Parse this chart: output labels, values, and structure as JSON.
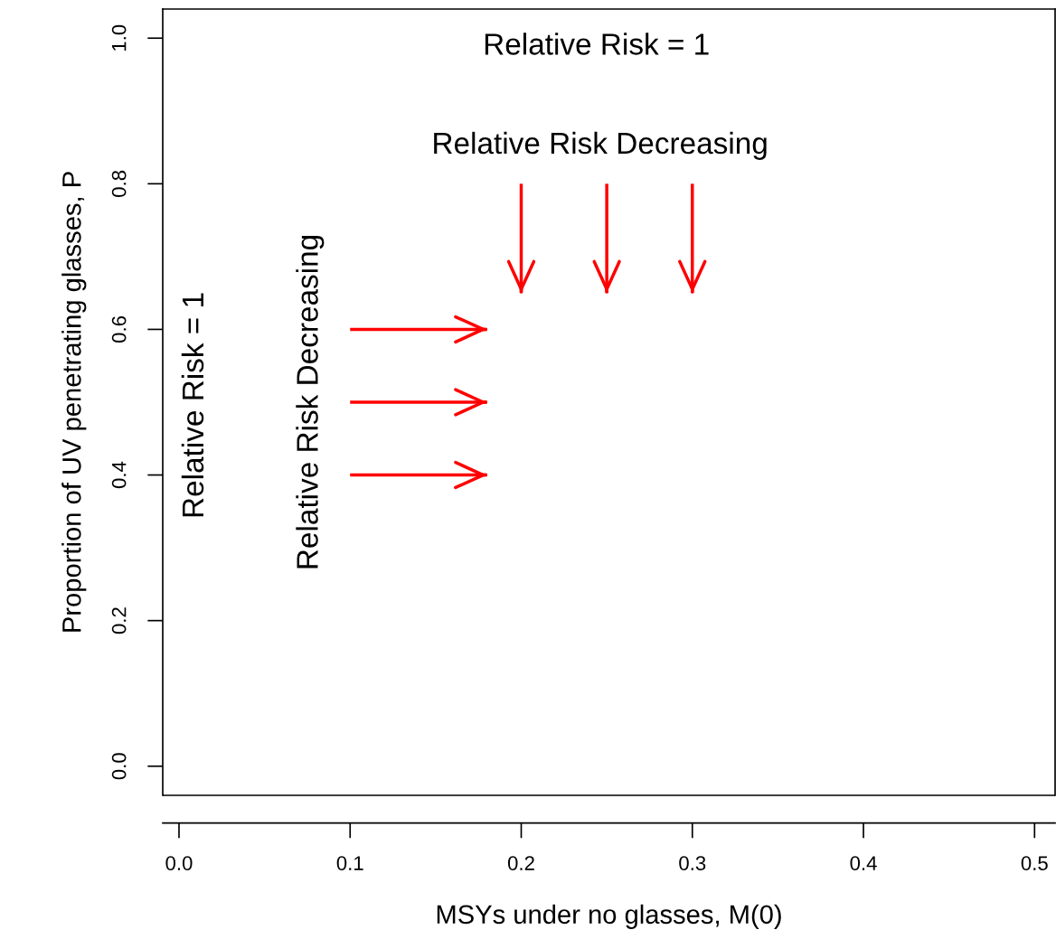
{
  "chart_data": {
    "type": "line",
    "xlabel": "MSYs under no glasses, M(0)",
    "ylabel": "Proportion of UV penetrating glasses, P",
    "xlim": [
      -0.0095,
      0.512
    ],
    "ylim": [
      -0.04,
      1.04
    ],
    "xticks": [
      {
        "value": 0,
        "label": "0.0"
      },
      0.1,
      0.2,
      0.3,
      0.4,
      0.5
    ],
    "yticks": [
      {
        "value": 0,
        "label": "0.0"
      },
      0.2,
      0.4,
      0.6,
      0.8,
      {
        "value": 1,
        "label": "1.0"
      }
    ],
    "annotations": [
      "Relative Risk = 1",
      "Relative Risk Decreasing",
      "Relative Risk = 1",
      "Relative Risk Decreasing"
    ],
    "series": [
      {
        "color": "#ff0000",
        "x": [
          0.1,
          0.18
        ],
        "values": [
          0.6,
          0.6
        ]
      },
      {
        "color": "#ff0000",
        "x": [
          0.1,
          0.18
        ],
        "values": [
          0.5,
          0.5
        ]
      },
      {
        "color": "#ff0000",
        "x": [
          0.1,
          0.18
        ],
        "values": [
          0.4,
          0.4
        ]
      },
      {
        "color": "#ff0000",
        "x": [
          0.2,
          0.2
        ],
        "values": [
          0.8,
          0.65
        ]
      },
      {
        "color": "#ff0000",
        "x": [
          0.25,
          0.25
        ],
        "values": [
          0.8,
          0.65
        ]
      },
      {
        "color": "#ff0000",
        "x": [
          0.3,
          0.3
        ],
        "values": [
          0.8,
          0.65
        ]
      }
    ]
  }
}
